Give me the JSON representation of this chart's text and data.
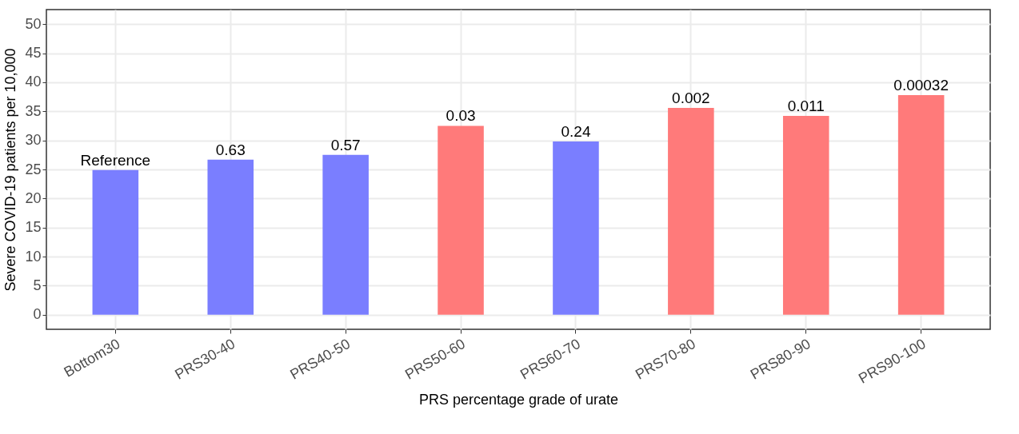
{
  "chart_data": {
    "type": "bar",
    "xlabel": "PRS percentage grade of urate",
    "ylabel": "Severe COVID-19 patients per 10,000",
    "categories": [
      "Bottom30",
      "PRS30-40",
      "PRS40-50",
      "PRS50-60",
      "PRS60-70",
      "PRS70-80",
      "PRS80-90",
      "PRS90-100"
    ],
    "values": [
      24.9,
      26.7,
      27.5,
      32.5,
      29.8,
      35.6,
      34.2,
      37.8
    ],
    "colors": [
      "#7a7eff",
      "#7a7eff",
      "#7a7eff",
      "#ff7a7a",
      "#7a7eff",
      "#ff7a7a",
      "#ff7a7a",
      "#ff7a7a"
    ],
    "annotations": [
      {
        "text": "Reference",
        "x": "Bottom30",
        "y": 24.9
      },
      {
        "text": "0.63",
        "x": "PRS30-40",
        "y": 26.7
      },
      {
        "text": "0.57",
        "x": "PRS40-50",
        "y": 27.5
      },
      {
        "text": "0.03",
        "x": "PRS50-60",
        "y": 32.5
      },
      {
        "text": "0.24",
        "x": "PRS60-70",
        "y": 29.8
      },
      {
        "text": "0.002",
        "x": "PRS70-80",
        "y": 35.6
      },
      {
        "text": "0.011",
        "x": "PRS80-90",
        "y": 34.2
      },
      {
        "text": "0.00032",
        "x": "PRS90-100",
        "y": 37.8
      }
    ],
    "ylim": [
      -2.5,
      52.5
    ],
    "yticks": [
      0,
      5,
      10,
      15,
      20,
      25,
      30,
      35,
      40,
      45,
      50
    ],
    "grid": true
  }
}
